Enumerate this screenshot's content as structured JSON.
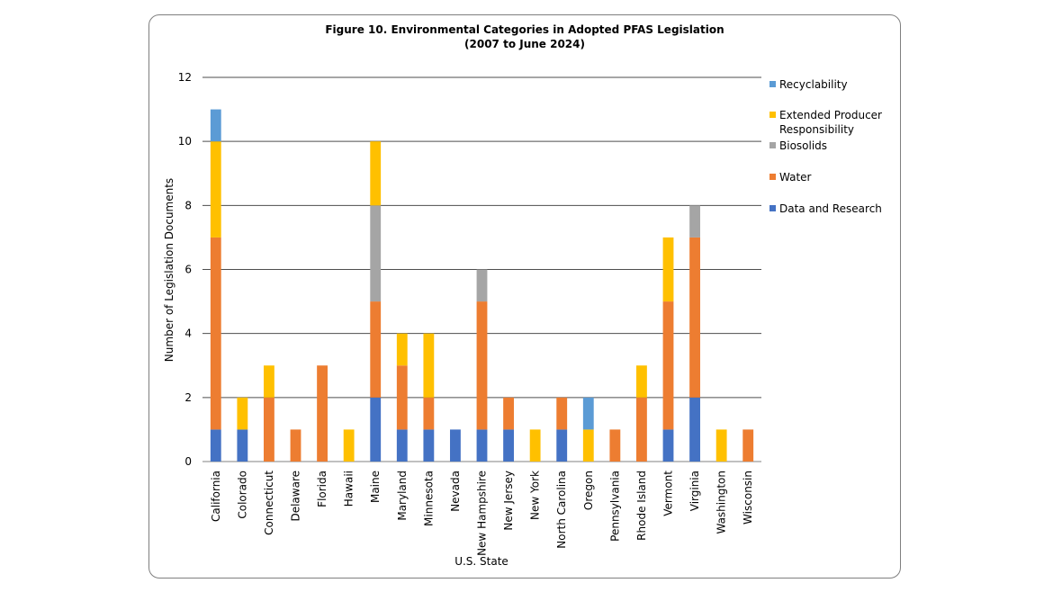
{
  "chart_data": {
    "type": "bar",
    "stacked": true,
    "title": [
      "Figure 10. Environmental Categories in Adopted PFAS Legislation",
      "(2007 to June 2024)"
    ],
    "xlabel": "U.S. State",
    "ylabel": "Number of Legislation Documents",
    "ylim": [
      0,
      12
    ],
    "yticks": [
      0,
      2,
      4,
      6,
      8,
      10,
      12
    ],
    "grid": true,
    "legend_position": "right",
    "categories": [
      "California",
      "Colorado",
      "Connecticut",
      "Delaware",
      "Florida",
      "Hawaii",
      "Maine",
      "Maryland",
      "Minnesota",
      "Nevada",
      "New Hampshire",
      "New Jersey",
      "New York",
      "North Carolina",
      "Oregon",
      "Pennsylvania",
      "Rhode Island",
      "Vermont",
      "Virginia",
      "Washington",
      "Wisconsin"
    ],
    "series": [
      {
        "name": "Data and Research",
        "color": "#4472c4",
        "values": [
          1,
          1,
          0,
          0,
          0,
          0,
          2,
          1,
          1,
          1,
          1,
          1,
          0,
          1,
          0,
          0,
          0,
          1,
          2,
          0,
          0
        ]
      },
      {
        "name": "Water",
        "color": "#ed7d31",
        "values": [
          6,
          0,
          2,
          1,
          3,
          0,
          3,
          2,
          1,
          0,
          4,
          1,
          0,
          1,
          0,
          1,
          2,
          4,
          5,
          0,
          1
        ]
      },
      {
        "name": "Biosolids",
        "color": "#a5a5a5",
        "values": [
          0,
          0,
          0,
          0,
          0,
          0,
          3,
          0,
          0,
          0,
          1,
          0,
          0,
          0,
          0,
          0,
          0,
          0,
          1,
          0,
          0
        ]
      },
      {
        "name": "Extended Producer Responsibility",
        "color": "#ffc000",
        "values": [
          3,
          1,
          1,
          0,
          0,
          1,
          2,
          1,
          2,
          0,
          0,
          0,
          1,
          0,
          1,
          0,
          1,
          2,
          0,
          1,
          0
        ]
      },
      {
        "name": "Recyclability",
        "color": "#5b9bd5",
        "values": [
          1,
          0,
          0,
          0,
          0,
          0,
          0,
          0,
          0,
          0,
          0,
          0,
          0,
          0,
          1,
          0,
          0,
          0,
          0,
          0,
          0
        ]
      }
    ],
    "legend_order": [
      "Recyclability",
      "Extended Producer Responsibility",
      "Biosolids",
      "Water",
      "Data and Research"
    ],
    "legend_lines": {
      "Recyclability": [
        "Recyclability"
      ],
      "Extended Producer Responsibility": [
        "Extended Producer",
        "Responsibility"
      ],
      "Biosolids": [
        "Biosolids"
      ],
      "Water": [
        "Water"
      ],
      "Data and Research": [
        "Data and Research"
      ]
    }
  }
}
